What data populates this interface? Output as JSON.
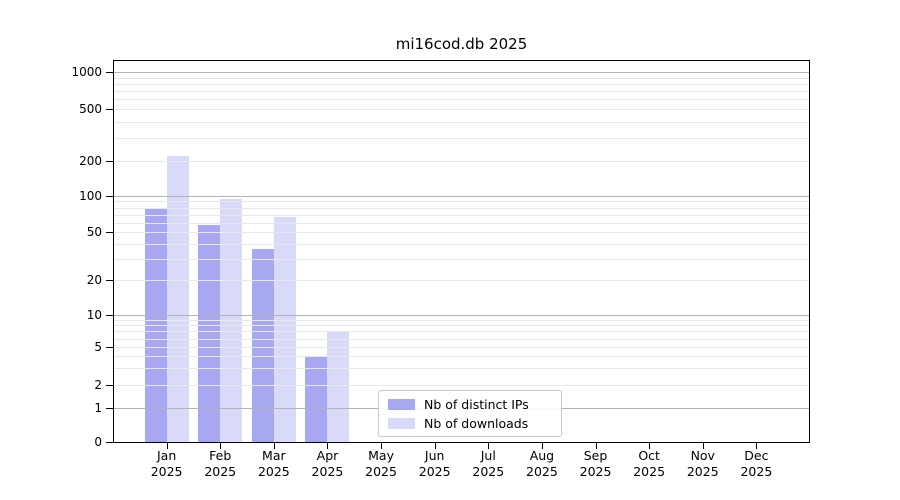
{
  "title": "mi16cod.db 2025",
  "legend": {
    "items": [
      {
        "label": "Nb of distinct IPs",
        "color": "#a7a7f2"
      },
      {
        "label": "Nb of downloads",
        "color": "#d9d9f9"
      }
    ]
  },
  "chart_data": {
    "type": "bar",
    "title": "mi16cod.db 2025",
    "categories": [
      "Jan",
      "Feb",
      "Mar",
      "Apr",
      "May",
      "Jun",
      "Jul",
      "Aug",
      "Sep",
      "Oct",
      "Nov",
      "Dec"
    ],
    "category_year": "2025",
    "series": [
      {
        "name": "Nb of distinct IPs",
        "color": "#a7a7f2",
        "values": [
          78,
          57,
          36,
          4,
          0,
          0,
          0,
          0,
          0,
          0,
          0,
          0
        ]
      },
      {
        "name": "Nb of downloads",
        "color": "#d9d9f9",
        "values": [
          220,
          95,
          67,
          7,
          0,
          0,
          0,
          0,
          0,
          0,
          0,
          0
        ]
      }
    ],
    "xlabel": "",
    "ylabel": "",
    "yscale": "symlog",
    "yticks": [
      0,
      1,
      2,
      5,
      10,
      20,
      50,
      100,
      200,
      500,
      1000
    ],
    "ylim": [
      0,
      1200
    ],
    "grid": "horizontal major+minor, drawn above bars",
    "legend_position": "inside lower-center"
  }
}
